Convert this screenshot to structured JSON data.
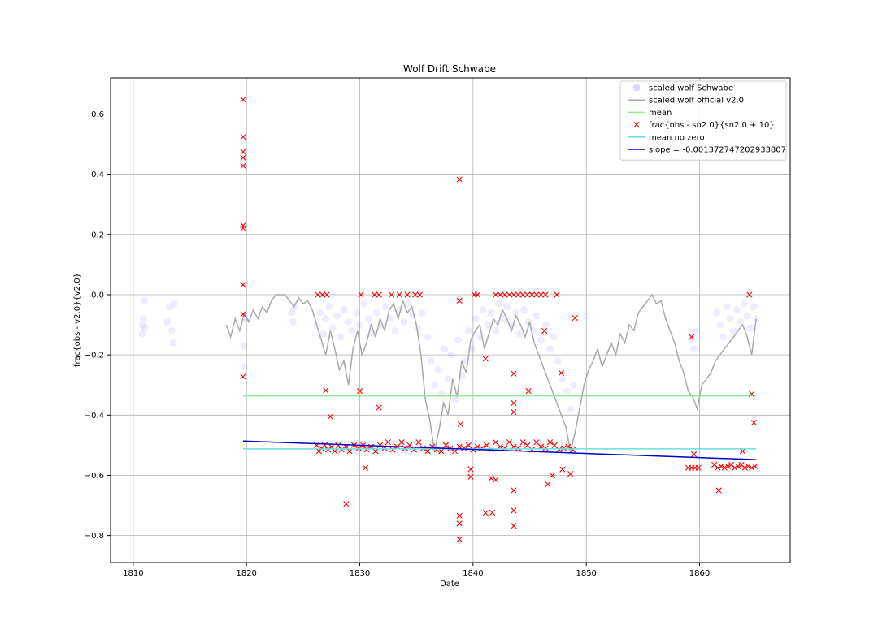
{
  "chart_data": {
    "type": "scatter",
    "title": "Wolf Drift Schwabe",
    "xlabel": "Date",
    "ylabel": "frac{obs - v2.0}{v2.0}",
    "xlim": [
      1808,
      1868
    ],
    "ylim": [
      -0.89,
      0.72
    ],
    "xticks": [
      1810,
      1820,
      1830,
      1840,
      1850,
      1860
    ],
    "yticks": [
      -0.8,
      -0.6,
      -0.4,
      -0.2,
      0.0,
      0.2,
      0.4,
      0.6
    ],
    "xtick_labels": [
      "1810",
      "1820",
      "1830",
      "1840",
      "1850",
      "1860"
    ],
    "ytick_labels": [
      "−0.8",
      "−0.6",
      "−0.4",
      "−0.2",
      "0.0",
      "0.2",
      "0.4",
      "0.6"
    ],
    "grid": true,
    "legend_position": "top-right",
    "series": [
      {
        "name": "scaled wolf Schwabe",
        "kind": "scatter-circle",
        "color": "#0000ff",
        "opacity": 0.07,
        "x": [
          1810.8,
          1810.8,
          1810.9,
          1811.0,
          1811.0,
          1813.0,
          1813.2,
          1813.4,
          1813.5,
          1813.6,
          1819.8,
          1819.8,
          1819.9,
          1824.0,
          1824.1,
          1824.2,
          1826.2,
          1826.5,
          1826.8,
          1827.0,
          1827.3,
          1827.6,
          1828.0,
          1828.3,
          1828.6,
          1829.0,
          1829.3,
          1829.7,
          1830.0,
          1830.4,
          1830.8,
          1831.1,
          1831.5,
          1831.9,
          1832.3,
          1832.7,
          1833.1,
          1833.5,
          1833.9,
          1834.3,
          1834.7,
          1835.1,
          1835.5,
          1836.0,
          1836.3,
          1836.6,
          1836.9,
          1837.2,
          1837.5,
          1837.8,
          1838.1,
          1838.4,
          1838.7,
          1839.0,
          1839.3,
          1839.6,
          1839.9,
          1840.2,
          1840.6,
          1840.9,
          1841.3,
          1841.6,
          1842.0,
          1842.3,
          1842.7,
          1843.0,
          1843.4,
          1843.8,
          1844.1,
          1844.5,
          1844.9,
          1845.3,
          1845.6,
          1846.0,
          1846.4,
          1846.8,
          1847.1,
          1847.5,
          1847.9,
          1848.3,
          1848.6,
          1848.9,
          1859.3,
          1859.5,
          1859.7,
          1861.5,
          1861.8,
          1862.1,
          1862.4,
          1862.7,
          1863.0,
          1863.3,
          1863.6,
          1863.9,
          1864.2,
          1864.5,
          1864.8,
          1865.0
        ],
        "y": [
          -0.13,
          -0.1,
          -0.08,
          -0.11,
          -0.02,
          -0.09,
          -0.04,
          -0.12,
          -0.16,
          -0.03,
          -0.17,
          -0.24,
          -0.08,
          -0.06,
          -0.09,
          -0.04,
          -0.1,
          -0.06,
          -0.13,
          -0.08,
          -0.04,
          -0.11,
          -0.07,
          -0.14,
          -0.05,
          -0.09,
          -0.12,
          -0.06,
          -0.1,
          -0.03,
          -0.08,
          -0.13,
          -0.06,
          -0.1,
          -0.04,
          -0.08,
          -0.12,
          -0.05,
          -0.09,
          -0.03,
          -0.07,
          -0.11,
          -0.06,
          -0.14,
          -0.22,
          -0.3,
          -0.25,
          -0.33,
          -0.18,
          -0.28,
          -0.2,
          -0.35,
          -0.15,
          -0.27,
          -0.22,
          -0.12,
          -0.18,
          -0.08,
          -0.14,
          -0.05,
          -0.1,
          -0.06,
          -0.12,
          -0.03,
          -0.08,
          -0.04,
          -0.1,
          -0.06,
          -0.13,
          -0.05,
          -0.09,
          -0.12,
          -0.07,
          -0.15,
          -0.1,
          -0.18,
          -0.14,
          -0.22,
          -0.28,
          -0.32,
          -0.38,
          -0.3,
          -0.15,
          -0.18,
          -0.12,
          -0.06,
          -0.1,
          -0.14,
          -0.04,
          -0.08,
          -0.12,
          -0.05,
          -0.09,
          -0.03,
          -0.07,
          -0.11,
          -0.04,
          -0.08
        ]
      },
      {
        "name": "scaled wolf official v2.0",
        "kind": "line",
        "color": "#a9a9a9",
        "x": [
          1818.2,
          1818.6,
          1819.0,
          1819.4,
          1819.8,
          1820.2,
          1820.6,
          1821.0,
          1821.4,
          1821.8,
          1822.2,
          1822.6,
          1823.0,
          1823.4,
          1823.8,
          1824.2,
          1824.6,
          1825.0,
          1825.4,
          1825.8,
          1826.2,
          1826.6,
          1827.0,
          1827.4,
          1827.8,
          1828.2,
          1828.6,
          1829.0,
          1829.4,
          1829.8,
          1830.2,
          1830.6,
          1831.0,
          1831.4,
          1831.8,
          1832.2,
          1832.6,
          1833.0,
          1833.4,
          1833.8,
          1834.2,
          1834.6,
          1835.0,
          1835.4,
          1835.8,
          1836.2,
          1836.6,
          1837.0,
          1837.4,
          1837.8,
          1838.2,
          1838.6,
          1839.0,
          1839.4,
          1839.8,
          1840.2,
          1840.6,
          1841.0,
          1841.4,
          1841.8,
          1842.2,
          1842.6,
          1843.0,
          1843.4,
          1843.8,
          1844.2,
          1844.6,
          1845.0,
          1845.4,
          1845.8,
          1846.2,
          1846.6,
          1847.0,
          1847.4,
          1847.8,
          1848.2,
          1848.6,
          1849.0,
          1849.4,
          1849.8,
          1850.2,
          1850.6,
          1851.0,
          1851.4,
          1851.8,
          1852.2,
          1852.6,
          1853.0,
          1853.4,
          1853.8,
          1854.2,
          1854.6,
          1855.0,
          1855.4,
          1855.8,
          1856.2,
          1856.6,
          1857.0,
          1857.4,
          1857.8,
          1858.2,
          1858.6,
          1859.0,
          1859.4,
          1859.8,
          1860.2,
          1860.6,
          1861.0,
          1861.4,
          1861.8,
          1862.2,
          1862.6,
          1863.0,
          1863.4,
          1863.8,
          1864.2,
          1864.6,
          1865.0
        ],
        "y": [
          -0.1,
          -0.14,
          -0.08,
          -0.12,
          -0.06,
          -0.09,
          -0.05,
          -0.08,
          -0.04,
          -0.06,
          -0.02,
          0.0,
          0.0,
          0.0,
          -0.02,
          -0.04,
          -0.01,
          -0.03,
          -0.02,
          -0.05,
          -0.1,
          -0.15,
          -0.2,
          -0.12,
          -0.18,
          -0.25,
          -0.22,
          -0.3,
          -0.18,
          -0.12,
          -0.2,
          -0.16,
          -0.1,
          -0.14,
          -0.08,
          -0.12,
          -0.05,
          -0.03,
          -0.08,
          -0.02,
          -0.06,
          -0.04,
          -0.1,
          -0.2,
          -0.35,
          -0.42,
          -0.52,
          -0.45,
          -0.36,
          -0.4,
          -0.28,
          -0.34,
          -0.22,
          -0.26,
          -0.15,
          -0.12,
          -0.1,
          -0.18,
          -0.13,
          -0.08,
          -0.1,
          -0.05,
          -0.08,
          -0.12,
          -0.07,
          -0.1,
          -0.14,
          -0.09,
          -0.16,
          -0.2,
          -0.24,
          -0.28,
          -0.32,
          -0.36,
          -0.4,
          -0.44,
          -0.52,
          -0.46,
          -0.38,
          -0.3,
          -0.25,
          -0.22,
          -0.18,
          -0.24,
          -0.2,
          -0.16,
          -0.2,
          -0.13,
          -0.16,
          -0.1,
          -0.12,
          -0.06,
          -0.04,
          -0.02,
          0.0,
          -0.03,
          -0.02,
          -0.08,
          -0.12,
          -0.16,
          -0.22,
          -0.26,
          -0.32,
          -0.34,
          -0.38,
          -0.3,
          -0.28,
          -0.26,
          -0.22,
          -0.2,
          -0.18,
          -0.16,
          -0.14,
          -0.12,
          -0.1,
          -0.14,
          -0.2,
          -0.08
        ]
      },
      {
        "name": "mean",
        "kind": "hline",
        "color": "#90ee90",
        "x": [
          1819.7,
          1865.0
        ],
        "y": [
          -0.336,
          -0.336
        ]
      },
      {
        "name": "frac{obs - sn2.0}{sn2.0 + 10}",
        "kind": "scatter-x",
        "color": "#ff0000",
        "x": [
          1819.7,
          1819.7,
          1819.7,
          1819.7,
          1819.7,
          1819.7,
          1819.7,
          1819.7,
          1819.7,
          1819.7,
          1826.2,
          1826.4,
          1826.6,
          1826.9,
          1827.2,
          1827.5,
          1827.8,
          1828.1,
          1828.4,
          1828.8,
          1829.1,
          1829.5,
          1829.9,
          1830.3,
          1830.6,
          1831.0,
          1831.4,
          1831.8,
          1832.2,
          1832.5,
          1832.9,
          1833.3,
          1833.7,
          1834.0,
          1834.4,
          1834.8,
          1835.2,
          1835.6,
          1836.0,
          1836.4,
          1836.8,
          1837.2,
          1837.6,
          1838.0,
          1838.4,
          1838.8,
          1839.2,
          1839.6,
          1840.0,
          1840.4,
          1840.8,
          1841.2,
          1841.6,
          1842.0,
          1842.4,
          1842.8,
          1843.2,
          1843.6,
          1844.0,
          1844.4,
          1844.8,
          1845.2,
          1845.6,
          1846.0,
          1846.4,
          1846.8,
          1847.2,
          1847.6,
          1848.0,
          1848.4,
          1848.8,
          1826.3,
          1826.7,
          1827.1,
          1830.1,
          1831.3,
          1831.7,
          1832.8,
          1833.5,
          1834.2,
          1834.9,
          1835.3,
          1838.8,
          1840.1,
          1840.4,
          1842.0,
          1842.4,
          1842.8,
          1843.2,
          1843.6,
          1844.0,
          1844.4,
          1844.8,
          1845.2,
          1845.6,
          1846.0,
          1846.4,
          1847.4,
          1838.8,
          1838.8,
          1838.8,
          1838.8,
          1828.8,
          1839.8,
          1841.1,
          1841.7,
          1843.6,
          1843.6,
          1843.6,
          1846.6,
          1847.0,
          1847.9,
          1848.6,
          1849.0,
          1827.0,
          1827.4,
          1830.0,
          1831.7,
          1838.9,
          1841.1,
          1843.6,
          1843.6,
          1843.6,
          1844.9,
          1846.3,
          1847.8,
          1830.5,
          1839.8,
          1841.6,
          1842.0,
          1859.0,
          1859.3,
          1859.6,
          1859.9,
          1861.3,
          1861.6,
          1861.9,
          1862.2,
          1862.5,
          1862.8,
          1863.1,
          1863.4,
          1863.7,
          1864.0,
          1864.3,
          1864.6,
          1864.9,
          1859.3,
          1859.5,
          1861.7,
          1863.8,
          1864.4,
          1864.6,
          1864.8
        ],
        "y": [
          0.648,
          0.524,
          0.475,
          0.455,
          0.428,
          0.23,
          0.221,
          0.033,
          -0.065,
          -0.272,
          -0.5,
          -0.52,
          -0.51,
          -0.5,
          -0.515,
          -0.505,
          -0.52,
          -0.5,
          -0.515,
          -0.505,
          -0.52,
          -0.5,
          -0.51,
          -0.5,
          -0.515,
          -0.505,
          -0.52,
          -0.5,
          -0.51,
          -0.49,
          -0.515,
          -0.505,
          -0.49,
          -0.51,
          -0.5,
          -0.515,
          -0.49,
          -0.51,
          -0.52,
          -0.505,
          -0.515,
          -0.52,
          -0.5,
          -0.51,
          -0.52,
          -0.505,
          -0.51,
          -0.5,
          -0.515,
          -0.505,
          -0.51,
          -0.5,
          -0.515,
          -0.49,
          -0.505,
          -0.51,
          -0.49,
          -0.505,
          -0.51,
          -0.49,
          -0.5,
          -0.515,
          -0.49,
          -0.505,
          -0.51,
          -0.49,
          -0.5,
          -0.515,
          -0.51,
          -0.505,
          -0.515,
          0.0,
          0.0,
          0.0,
          0.0,
          0.0,
          0.0,
          0.0,
          0.0,
          0.0,
          0.0,
          0.0,
          -0.02,
          0.0,
          0.0,
          0.0,
          0.0,
          0.0,
          0.0,
          0.0,
          0.0,
          0.0,
          0.0,
          0.0,
          0.0,
          0.0,
          0.0,
          0.0,
          0.383,
          -0.734,
          -0.76,
          -0.813,
          -0.695,
          -0.605,
          -0.725,
          -0.724,
          -0.717,
          -0.768,
          -0.65,
          -0.63,
          -0.6,
          -0.58,
          -0.595,
          -0.077,
          -0.318,
          -0.405,
          -0.32,
          -0.375,
          -0.43,
          -0.213,
          -0.262,
          -0.36,
          -0.39,
          -0.32,
          -0.12,
          -0.26,
          -0.575,
          -0.58,
          -0.61,
          -0.615,
          -0.575,
          -0.575,
          -0.575,
          -0.575,
          -0.565,
          -0.575,
          -0.57,
          -0.575,
          -0.57,
          -0.565,
          -0.575,
          -0.57,
          -0.565,
          -0.575,
          -0.57,
          -0.575,
          -0.57,
          -0.14,
          -0.53,
          -0.65,
          -0.52,
          0.0,
          -0.33,
          -0.425
        ]
      },
      {
        "name": "mean no zero",
        "kind": "hline",
        "color": "#66e0e0",
        "x": [
          1819.7,
          1865.0
        ],
        "y": [
          -0.512,
          -0.512
        ]
      },
      {
        "name": "slope = -0.0013727472029338​07",
        "kind": "line",
        "color": "#0000cd",
        "x": [
          1819.7,
          1865.0
        ],
        "y": [
          -0.486,
          -0.548
        ]
      }
    ]
  }
}
